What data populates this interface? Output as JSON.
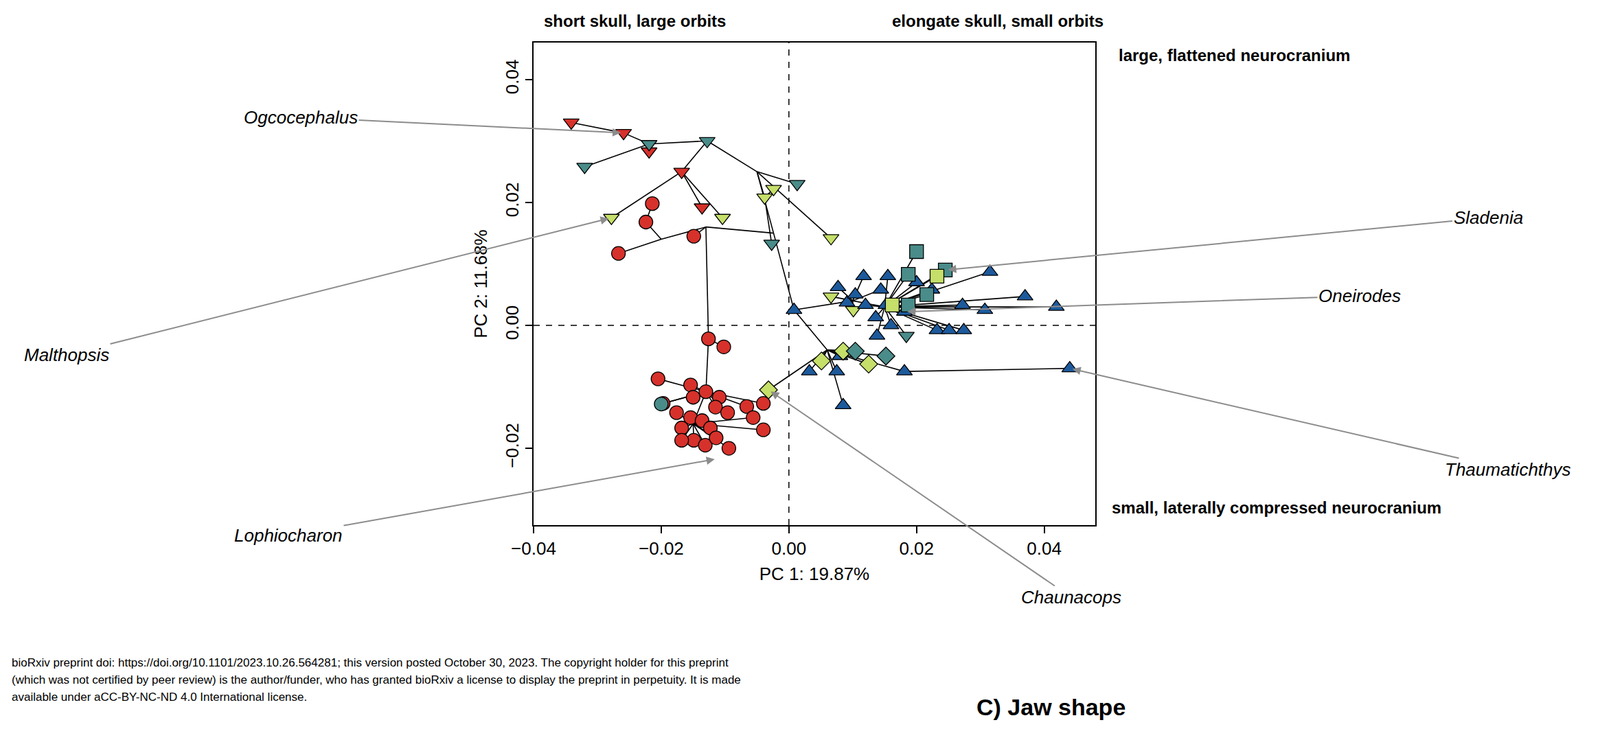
{
  "chart_data": {
    "type": "scatter",
    "xlabel": "PC 1: 19.87%",
    "ylabel": "PC 2: 11.68%",
    "xlim": [
      -0.04,
      0.048
    ],
    "ylim": [
      -0.0325,
      0.046
    ],
    "xticks": [
      {
        "value": -0.04,
        "label": "−0.04"
      },
      {
        "value": -0.02,
        "label": "−0.02"
      },
      {
        "value": 0,
        "label": "0.00"
      },
      {
        "value": 0.02,
        "label": "0.02"
      },
      {
        "value": 0.04,
        "label": "0.04"
      }
    ],
    "yticks": [
      {
        "value": -0.02,
        "label": "−0.02"
      },
      {
        "value": 0,
        "label": "0.00"
      },
      {
        "value": 0.02,
        "label": "0.02"
      },
      {
        "value": 0.04,
        "label": "0.04"
      }
    ],
    "grid": false,
    "series": [
      {
        "color": "#d7312b",
        "marker": "circle",
        "x": [
          -0.0214,
          -0.0224,
          -0.0267,
          -0.0149,
          -0.0126,
          -0.0102,
          -0.0205,
          -0.0154,
          -0.015,
          -0.013,
          -0.0109,
          -0.0115,
          -0.0096,
          -0.0066,
          -0.004,
          -0.0176,
          -0.0154,
          -0.0136,
          -0.0123,
          -0.0168,
          -0.0149,
          -0.0131,
          -0.0114,
          -0.0094,
          -0.004,
          -0.0197,
          -0.0056,
          -0.0168
        ],
        "y": [
          0.0198,
          0.0168,
          0.0117,
          0.0145,
          -0.0022,
          -0.0035,
          -0.0087,
          -0.0097,
          -0.0117,
          -0.0108,
          -0.0117,
          -0.0133,
          -0.0142,
          -0.0132,
          -0.0127,
          -0.0142,
          -0.015,
          -0.0155,
          -0.0167,
          -0.0167,
          -0.0187,
          -0.0195,
          -0.0183,
          -0.02,
          -0.017,
          -0.0127,
          -0.015,
          -0.0187
        ]
      },
      {
        "color": "#4a8c8a",
        "marker": "circle",
        "x": [
          -0.02
        ],
        "y": [
          -0.0128
        ]
      },
      {
        "color": "#d7312b",
        "marker": "triangle-down",
        "x": [
          -0.0341,
          -0.0259,
          -0.0219,
          -0.0168,
          -0.0136
        ],
        "y": [
          0.033,
          0.0313,
          0.0283,
          0.025,
          0.0192
        ]
      },
      {
        "color": "#4a8c8a",
        "marker": "triangle-down",
        "x": [
          -0.032,
          -0.0219,
          -0.0128,
          -0.0027,
          0.0013,
          0.0184
        ],
        "y": [
          0.0258,
          0.0295,
          0.03,
          0.0133,
          0.023,
          -0.0017
        ]
      },
      {
        "color": "#c5df6a",
        "marker": "triangle-down",
        "x": [
          -0.0278,
          -0.0104,
          -0.0024,
          -0.0038,
          0.0066,
          0.0066,
          0.0101
        ],
        "y": [
          0.0175,
          0.0175,
          0.0222,
          0.0208,
          0.0142,
          0.0047,
          0.0025
        ]
      },
      {
        "color": "#1d5a9c",
        "marker": "triangle-up",
        "x": [
          0.0008,
          0.0077,
          0.0091,
          0.0117,
          0.0155,
          0.0144,
          0.02,
          0.0224,
          0.0272,
          0.0315,
          0.037,
          0.0419,
          0.044,
          0.0181,
          0.0136,
          0.016,
          0.0232,
          0.0251,
          0.0274,
          0.0181,
          0.008,
          0.0075,
          0.0085,
          0.0138,
          0.012,
          0.0152,
          0.0104,
          0.0307,
          0.0032
        ],
        "y": [
          0.0025,
          0.0062,
          0.0037,
          0.008,
          0.008,
          0.0058,
          0.007,
          0.0058,
          0.0033,
          0.0087,
          0.0047,
          0.003,
          -0.007,
          0.0022,
          0.0013,
          0.0,
          -0.0008,
          -0.0008,
          -0.0008,
          -0.0075,
          -0.005,
          -0.0075,
          -0.013,
          -0.0017,
          0.0033,
          0.0033,
          0.005,
          0.0025,
          -0.0075
        ]
      },
      {
        "color": "#4a8c8a",
        "marker": "square",
        "x": [
          0.02,
          0.0245,
          0.0216,
          0.0187,
          0.0187
        ],
        "y": [
          0.012,
          0.009,
          0.005,
          0.0033,
          0.0083
        ]
      },
      {
        "color": "#c5df6a",
        "marker": "square",
        "x": [
          0.0162,
          0.0232
        ],
        "y": [
          0.0033,
          0.008
        ]
      },
      {
        "color": "#c5df6a",
        "marker": "diamond",
        "x": [
          -0.0032,
          0.0051,
          0.0085,
          0.0125
        ],
        "y": [
          -0.0105,
          -0.0058,
          -0.0042,
          -0.0063
        ]
      },
      {
        "color": "#4a8c8a",
        "marker": "diamond",
        "x": [
          0.0104,
          0.0152
        ],
        "y": [
          -0.0042,
          -0.005
        ]
      }
    ],
    "branches": [
      [
        -0.0024,
        0.015,
        0.0008,
        0.0025
      ],
      [
        -0.0024,
        0.015,
        -0.013,
        0.016
      ],
      [
        -0.013,
        0.016,
        -0.0149,
        0.0145
      ],
      [
        -0.013,
        0.016,
        -0.02,
        0.014
      ],
      [
        -0.02,
        0.014,
        -0.0224,
        0.0168
      ],
      [
        -0.02,
        0.014,
        -0.0267,
        0.0117
      ],
      [
        -0.0224,
        0.0168,
        -0.0214,
        0.0198
      ],
      [
        -0.013,
        0.016,
        -0.0126,
        -0.0022
      ],
      [
        -0.0126,
        -0.0022,
        -0.0102,
        -0.0035
      ],
      [
        -0.0126,
        -0.0022,
        -0.013,
        -0.0108
      ],
      [
        -0.013,
        -0.0108,
        -0.0205,
        -0.0087
      ],
      [
        -0.013,
        -0.0108,
        -0.0154,
        -0.0097
      ],
      [
        -0.013,
        -0.0108,
        -0.015,
        -0.0117
      ],
      [
        -0.013,
        -0.0108,
        -0.0109,
        -0.0117
      ],
      [
        -0.013,
        -0.0108,
        -0.0115,
        -0.0133
      ],
      [
        -0.013,
        -0.0108,
        -0.0096,
        -0.0142
      ],
      [
        -0.013,
        -0.0108,
        -0.0066,
        -0.0132
      ],
      [
        -0.013,
        -0.0108,
        -0.004,
        -0.0127
      ],
      [
        -0.013,
        -0.0108,
        -0.0197,
        -0.0127
      ],
      [
        -0.013,
        -0.0108,
        -0.02,
        -0.0128
      ],
      [
        -0.013,
        -0.0108,
        -0.015,
        -0.016
      ],
      [
        -0.015,
        -0.016,
        -0.0176,
        -0.0142
      ],
      [
        -0.015,
        -0.016,
        -0.0154,
        -0.015
      ],
      [
        -0.015,
        -0.016,
        -0.0136,
        -0.0155
      ],
      [
        -0.015,
        -0.016,
        -0.0123,
        -0.0167
      ],
      [
        -0.015,
        -0.016,
        -0.0168,
        -0.0167
      ],
      [
        -0.015,
        -0.016,
        -0.0149,
        -0.0187
      ],
      [
        -0.015,
        -0.016,
        -0.0131,
        -0.0195
      ],
      [
        -0.015,
        -0.016,
        -0.0114,
        -0.0183
      ],
      [
        -0.015,
        -0.016,
        -0.0094,
        -0.02
      ],
      [
        -0.015,
        -0.016,
        -0.0168,
        -0.0187
      ],
      [
        -0.015,
        -0.016,
        -0.004,
        -0.017
      ],
      [
        -0.015,
        -0.016,
        -0.0056,
        -0.015
      ],
      [
        -0.004,
        -0.0127,
        -0.0032,
        -0.0105
      ],
      [
        -0.0032,
        -0.0105,
        0.006,
        -0.004
      ],
      [
        -0.0024,
        0.015,
        -0.005,
        0.025
      ],
      [
        -0.005,
        0.025,
        -0.0128,
        0.03
      ],
      [
        -0.005,
        0.025,
        0.0013,
        0.023
      ],
      [
        -0.0128,
        0.03,
        -0.0219,
        0.0295
      ],
      [
        -0.0219,
        0.0295,
        -0.0259,
        0.0313
      ],
      [
        -0.0259,
        0.0313,
        -0.0341,
        0.033
      ],
      [
        -0.0219,
        0.0295,
        -0.032,
        0.0258
      ],
      [
        -0.0219,
        0.0295,
        -0.0219,
        0.0283
      ],
      [
        -0.0128,
        0.03,
        -0.0168,
        0.025
      ],
      [
        -0.0168,
        0.025,
        -0.0136,
        0.0192
      ],
      [
        -0.0168,
        0.025,
        -0.0278,
        0.0175
      ],
      [
        -0.0168,
        0.025,
        -0.0104,
        0.0175
      ],
      [
        -0.005,
        0.025,
        -0.0038,
        0.0208
      ],
      [
        -0.0038,
        0.0208,
        -0.0024,
        0.0222
      ],
      [
        -0.0038,
        0.0208,
        -0.0027,
        0.0133
      ],
      [
        -0.005,
        0.025,
        0.0066,
        0.0142
      ],
      [
        0.0008,
        0.0025,
        0.01,
        0.004
      ],
      [
        0.01,
        0.004,
        0.0077,
        0.0062
      ],
      [
        0.01,
        0.004,
        0.0117,
        0.008
      ],
      [
        0.01,
        0.004,
        0.0144,
        0.0058
      ],
      [
        0.01,
        0.004,
        0.0104,
        0.005
      ],
      [
        0.01,
        0.004,
        0.0091,
        0.0037
      ],
      [
        0.01,
        0.004,
        0.0066,
        0.0047
      ],
      [
        0.01,
        0.004,
        0.0101,
        0.0025
      ],
      [
        0.01,
        0.004,
        0.015,
        0.003
      ],
      [
        0.015,
        0.003,
        0.0155,
        0.008
      ],
      [
        0.015,
        0.003,
        0.02,
        0.007
      ],
      [
        0.015,
        0.003,
        0.0224,
        0.0058
      ],
      [
        0.015,
        0.003,
        0.0272,
        0.0033
      ],
      [
        0.015,
        0.003,
        0.0315,
        0.0087
      ],
      [
        0.015,
        0.003,
        0.037,
        0.0047
      ],
      [
        0.015,
        0.003,
        0.0419,
        0.003
      ],
      [
        0.015,
        0.003,
        0.0307,
        0.0025
      ],
      [
        0.015,
        0.003,
        0.0181,
        0.0022
      ],
      [
        0.015,
        0.003,
        0.016,
        0.0
      ],
      [
        0.015,
        0.003,
        0.0232,
        -0.0008
      ],
      [
        0.015,
        0.003,
        0.0251,
        -0.0008
      ],
      [
        0.015,
        0.003,
        0.0274,
        -0.0008
      ],
      [
        0.015,
        0.003,
        0.0162,
        0.0033
      ],
      [
        0.015,
        0.003,
        0.0232,
        0.008
      ],
      [
        0.015,
        0.003,
        0.0187,
        0.0033
      ],
      [
        0.015,
        0.003,
        0.0216,
        0.005
      ],
      [
        0.015,
        0.003,
        0.0187,
        0.0083
      ],
      [
        0.015,
        0.003,
        0.02,
        0.012
      ],
      [
        0.015,
        0.003,
        0.0245,
        0.009
      ],
      [
        0.015,
        0.003,
        0.0138,
        -0.0017
      ],
      [
        0.015,
        0.003,
        0.0184,
        -0.0017
      ],
      [
        0.015,
        0.003,
        0.0136,
        0.0013
      ],
      [
        0.015,
        0.003,
        0.012,
        0.0033
      ],
      [
        0.015,
        0.003,
        0.0152,
        0.0033
      ],
      [
        0.0008,
        0.0025,
        0.006,
        -0.004
      ],
      [
        0.006,
        -0.004,
        0.008,
        -0.005
      ],
      [
        0.006,
        -0.004,
        0.0075,
        -0.0075
      ],
      [
        0.006,
        -0.004,
        0.0085,
        -0.013
      ],
      [
        0.006,
        -0.004,
        0.0051,
        -0.0058
      ],
      [
        0.006,
        -0.004,
        0.0085,
        -0.0042
      ],
      [
        0.006,
        -0.004,
        0.0104,
        -0.0042
      ],
      [
        0.006,
        -0.004,
        0.0152,
        -0.005
      ],
      [
        0.006,
        -0.004,
        0.0125,
        -0.0063
      ],
      [
        0.006,
        -0.004,
        0.0032,
        -0.0075
      ],
      [
        0.006,
        -0.004,
        0.0181,
        -0.0075
      ],
      [
        0.0181,
        -0.0075,
        0.044,
        -0.007
      ]
    ],
    "annotations": [
      "short skull, large orbits",
      "elongate skull, small orbits",
      "large, flattened neurocranium",
      "small, laterally compressed neurocranium"
    ],
    "labels": [
      {
        "text": "Ogcocephalus",
        "target": [
          -0.0259,
          0.0313
        ]
      },
      {
        "text": "Malthopsis",
        "target": [
          -0.0278,
          0.0175
        ]
      },
      {
        "text": "Lophiocharon",
        "target": [
          -0.0112,
          -0.0217
        ]
      },
      {
        "text": "Sladenia",
        "target": [
          0.0245,
          0.009
        ]
      },
      {
        "text": "Oneirodes",
        "target": [
          0.0181,
          0.0022
        ]
      },
      {
        "text": "Thaumatichthys",
        "target": [
          0.044,
          -0.007
        ]
      },
      {
        "text": "Chaunacops",
        "target": [
          -0.0032,
          -0.0105
        ]
      }
    ],
    "notice": [
      "bioRxiv preprint doi: https://doi.org/10.1101/2023.10.26.564281; this version posted October 30, 2023. The copyright holder for this preprint",
      "(which was not certified by peer review) is the author/funder, who has granted bioRxiv a license to display the preprint in perpetuity. It is made",
      "available under aCC-BY-NC-ND 4.0 International license."
    ],
    "next_panel": "C) Jaw shape"
  }
}
